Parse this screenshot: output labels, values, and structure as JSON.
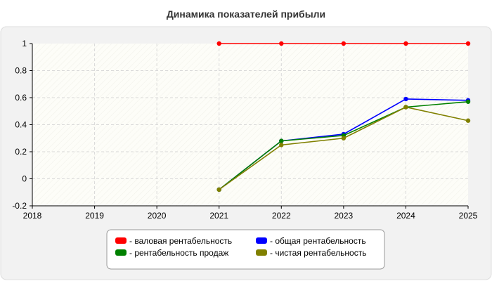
{
  "chart_data": {
    "type": "line",
    "title": "Динамика показателей прибыли",
    "xlabel": "",
    "ylabel": "",
    "x": [
      2018,
      2019,
      2020,
      2021,
      2022,
      2023,
      2024,
      2025
    ],
    "xlim": [
      2018,
      2025
    ],
    "ylim": [
      -0.2,
      1
    ],
    "x_ticks": [
      "2018",
      "2019",
      "2020",
      "2021",
      "2022",
      "2023",
      "2024",
      "2025"
    ],
    "y_ticks": [
      1,
      0.8,
      0.6,
      0.4,
      0.2,
      0,
      -0.2
    ],
    "y_tick_labels": [
      "1",
      "0.8",
      "0.6",
      "0.4",
      "0.2",
      "0",
      "-0.2"
    ],
    "grid": true,
    "legend_position": "bottom",
    "series": [
      {
        "name": "- валовая рентабельность",
        "color": "#ff0000",
        "points": [
          [
            2021,
            1
          ],
          [
            2022,
            1
          ],
          [
            2023,
            1
          ],
          [
            2024,
            1
          ],
          [
            2025,
            1
          ]
        ]
      },
      {
        "name": "- общая рентабельность",
        "color": "#0000ff",
        "points": [
          [
            2021,
            -0.08
          ],
          [
            2022,
            0.28
          ],
          [
            2023,
            0.33
          ],
          [
            2024,
            0.59
          ],
          [
            2025,
            0.58
          ]
        ]
      },
      {
        "name": "- рентабельность продаж",
        "color": "#008000",
        "points": [
          [
            2021,
            -0.08
          ],
          [
            2022,
            0.28
          ],
          [
            2023,
            0.32
          ],
          [
            2024,
            0.53
          ],
          [
            2025,
            0.57
          ]
        ]
      },
      {
        "name": "- чистая рентабельность",
        "color": "#808000",
        "points": [
          [
            2021,
            -0.08
          ],
          [
            2022,
            0.25
          ],
          [
            2023,
            0.3
          ],
          [
            2024,
            0.53
          ],
          [
            2025,
            0.43
          ]
        ]
      }
    ]
  }
}
